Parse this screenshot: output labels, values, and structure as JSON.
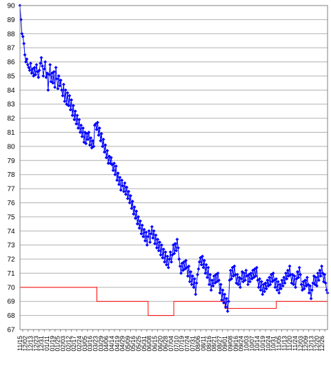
{
  "chart_data": {
    "type": "line",
    "title": "",
    "xlabel": "",
    "ylabel": "",
    "ylim": [
      67,
      90
    ],
    "yticks": [
      67,
      68,
      69,
      70,
      71,
      72,
      73,
      74,
      75,
      76,
      77,
      78,
      79,
      80,
      81,
      82,
      83,
      84,
      85,
      86,
      87,
      88,
      89,
      90
    ],
    "grid": true,
    "x_tick_labels": [
      "11/15",
      "12/02",
      "12/13",
      "12/23",
      "12/31",
      "01/11",
      "01/19",
      "01/25",
      "02/03",
      "02/12",
      "02/17",
      "02/24",
      "03/05",
      "03/16",
      "03/23",
      "03/29",
      "04/06",
      "04/14",
      "04/19",
      "04/29",
      "05/09",
      "05/16",
      "05/25",
      "05/31",
      "06/08",
      "06/15",
      "06/20",
      "06/28",
      "07/04",
      "07/10",
      "07/19",
      "07/24",
      "07/31",
      "08/06",
      "08/11",
      "08/16",
      "08/21",
      "08/27",
      "09/01",
      "09/08",
      "09/16",
      "09/24",
      "10/03",
      "10/07",
      "10/14",
      "10/19",
      "10/24",
      "10/31",
      "11/05",
      "11/13",
      "11/20",
      "11/24",
      "12/03",
      "12/09",
      "12/13",
      "12/20",
      "12/26"
    ],
    "series": [
      {
        "name": "",
        "color": "#0000ff",
        "marker": "diamond",
        "values": [
          90.0,
          89.0,
          88.0,
          87.8,
          87.3,
          86.5,
          86.0,
          86.2,
          85.8,
          85.6,
          85.4,
          85.9,
          85.2,
          85.5,
          85.0,
          85.6,
          85.1,
          85.8,
          85.3,
          84.9,
          85.4,
          85.9,
          86.3,
          85.7,
          85.0,
          85.5,
          86.0,
          84.9,
          85.2,
          84.0,
          85.1,
          85.8,
          84.6,
          85.2,
          84.5,
          85.3,
          84.2,
          85.6,
          84.8,
          84.1,
          85.0,
          84.3,
          84.7,
          84.0,
          83.6,
          84.4,
          83.2,
          84.0,
          83.0,
          83.8,
          82.9,
          83.6,
          82.6,
          83.3,
          82.2,
          82.9,
          81.9,
          82.5,
          81.6,
          82.2,
          81.3,
          81.9,
          81.0,
          81.5,
          80.7,
          81.3,
          80.3,
          81.0,
          80.2,
          80.9,
          80.5,
          81.0,
          80.1,
          80.6,
          79.9,
          80.4,
          80.0,
          81.5,
          81.6,
          81.2,
          81.7,
          80.8,
          81.3,
          80.4,
          80.9,
          80.0,
          80.5,
          79.6,
          80.1,
          79.2,
          79.7,
          78.8,
          79.3,
          78.8,
          79.2,
          78.7,
          78.3,
          78.8,
          78.0,
          78.6,
          77.6,
          78.1,
          77.3,
          77.8,
          76.9,
          77.6,
          77.2,
          76.8,
          77.4,
          76.6,
          77.1,
          76.3,
          76.8,
          76.0,
          76.5,
          75.6,
          76.1,
          75.2,
          75.7,
          74.9,
          75.4,
          74.5,
          75.0,
          74.2,
          74.7,
          73.8,
          74.4,
          73.6,
          74.1,
          73.3,
          73.9,
          73.0,
          73.6,
          74.0,
          73.2,
          73.8,
          74.3,
          73.5,
          74.0,
          73.1,
          73.7,
          72.8,
          73.4,
          72.6,
          73.2,
          72.3,
          73.0,
          72.1,
          72.7,
          71.8,
          72.5,
          71.6,
          72.2,
          71.4,
          72.0,
          72.5,
          71.8,
          72.3,
          73.0,
          72.4,
          73.1,
          72.6,
          73.4,
          72.8,
          72.0,
          71.5,
          71.0,
          71.7,
          71.2,
          71.8,
          71.3,
          71.9,
          71.4,
          70.8,
          71.5,
          70.4,
          71.1,
          70.2,
          70.8,
          70.0,
          70.6,
          69.5,
          70.3,
          70.9,
          71.3,
          71.8,
          72.1,
          71.6,
          72.2,
          71.4,
          71.9,
          71.0,
          71.6,
          70.7,
          71.4,
          70.2,
          70.9,
          69.8,
          70.5,
          70.1,
          70.8,
          70.3,
          70.9,
          70.4,
          71.0,
          70.5,
          69.6,
          70.2,
          69.1,
          69.8,
          68.9,
          69.5,
          68.6,
          69.2,
          68.3,
          69.0,
          70.5,
          71.2,
          70.6,
          71.4,
          70.8,
          71.5,
          70.9,
          70.3,
          70.9,
          70.2,
          70.7,
          70.0,
          70.6,
          71.1,
          70.4,
          71.0,
          70.5,
          71.2,
          70.8,
          70.2,
          70.9,
          70.4,
          71.0,
          70.6,
          71.2,
          70.7,
          71.3,
          70.8,
          71.4,
          70.5,
          70.0,
          70.6,
          69.8,
          70.4,
          69.5,
          70.2,
          69.7,
          70.3,
          69.9,
          70.5,
          70.1,
          70.7,
          70.2,
          70.9,
          70.4,
          71.0,
          70.5,
          70.0,
          70.6,
          69.8,
          70.4,
          69.6,
          70.2,
          69.9,
          70.5,
          70.1,
          70.7,
          70.3,
          71.0,
          70.6,
          71.2,
          70.8,
          71.5,
          70.9,
          70.3,
          70.9,
          70.2,
          70.8,
          70.0,
          70.6,
          71.1,
          70.7,
          71.4,
          70.9,
          70.2,
          69.8,
          70.4,
          69.9,
          70.5,
          70.1,
          70.7,
          70.2,
          69.6,
          70.1,
          69.2,
          69.8,
          70.3,
          70.8,
          70.2,
          70.7,
          70.1,
          71.0,
          70.5,
          71.2,
          70.8,
          71.5,
          71.0,
          70.4,
          70.9,
          70.3,
          69.8,
          69.6
        ]
      },
      {
        "name": "",
        "color": "#ff0000",
        "step": true,
        "values": [
          70,
          70,
          70,
          69,
          69,
          68,
          69,
          69,
          68.5,
          68.5,
          69,
          69,
          69
        ]
      }
    ]
  }
}
